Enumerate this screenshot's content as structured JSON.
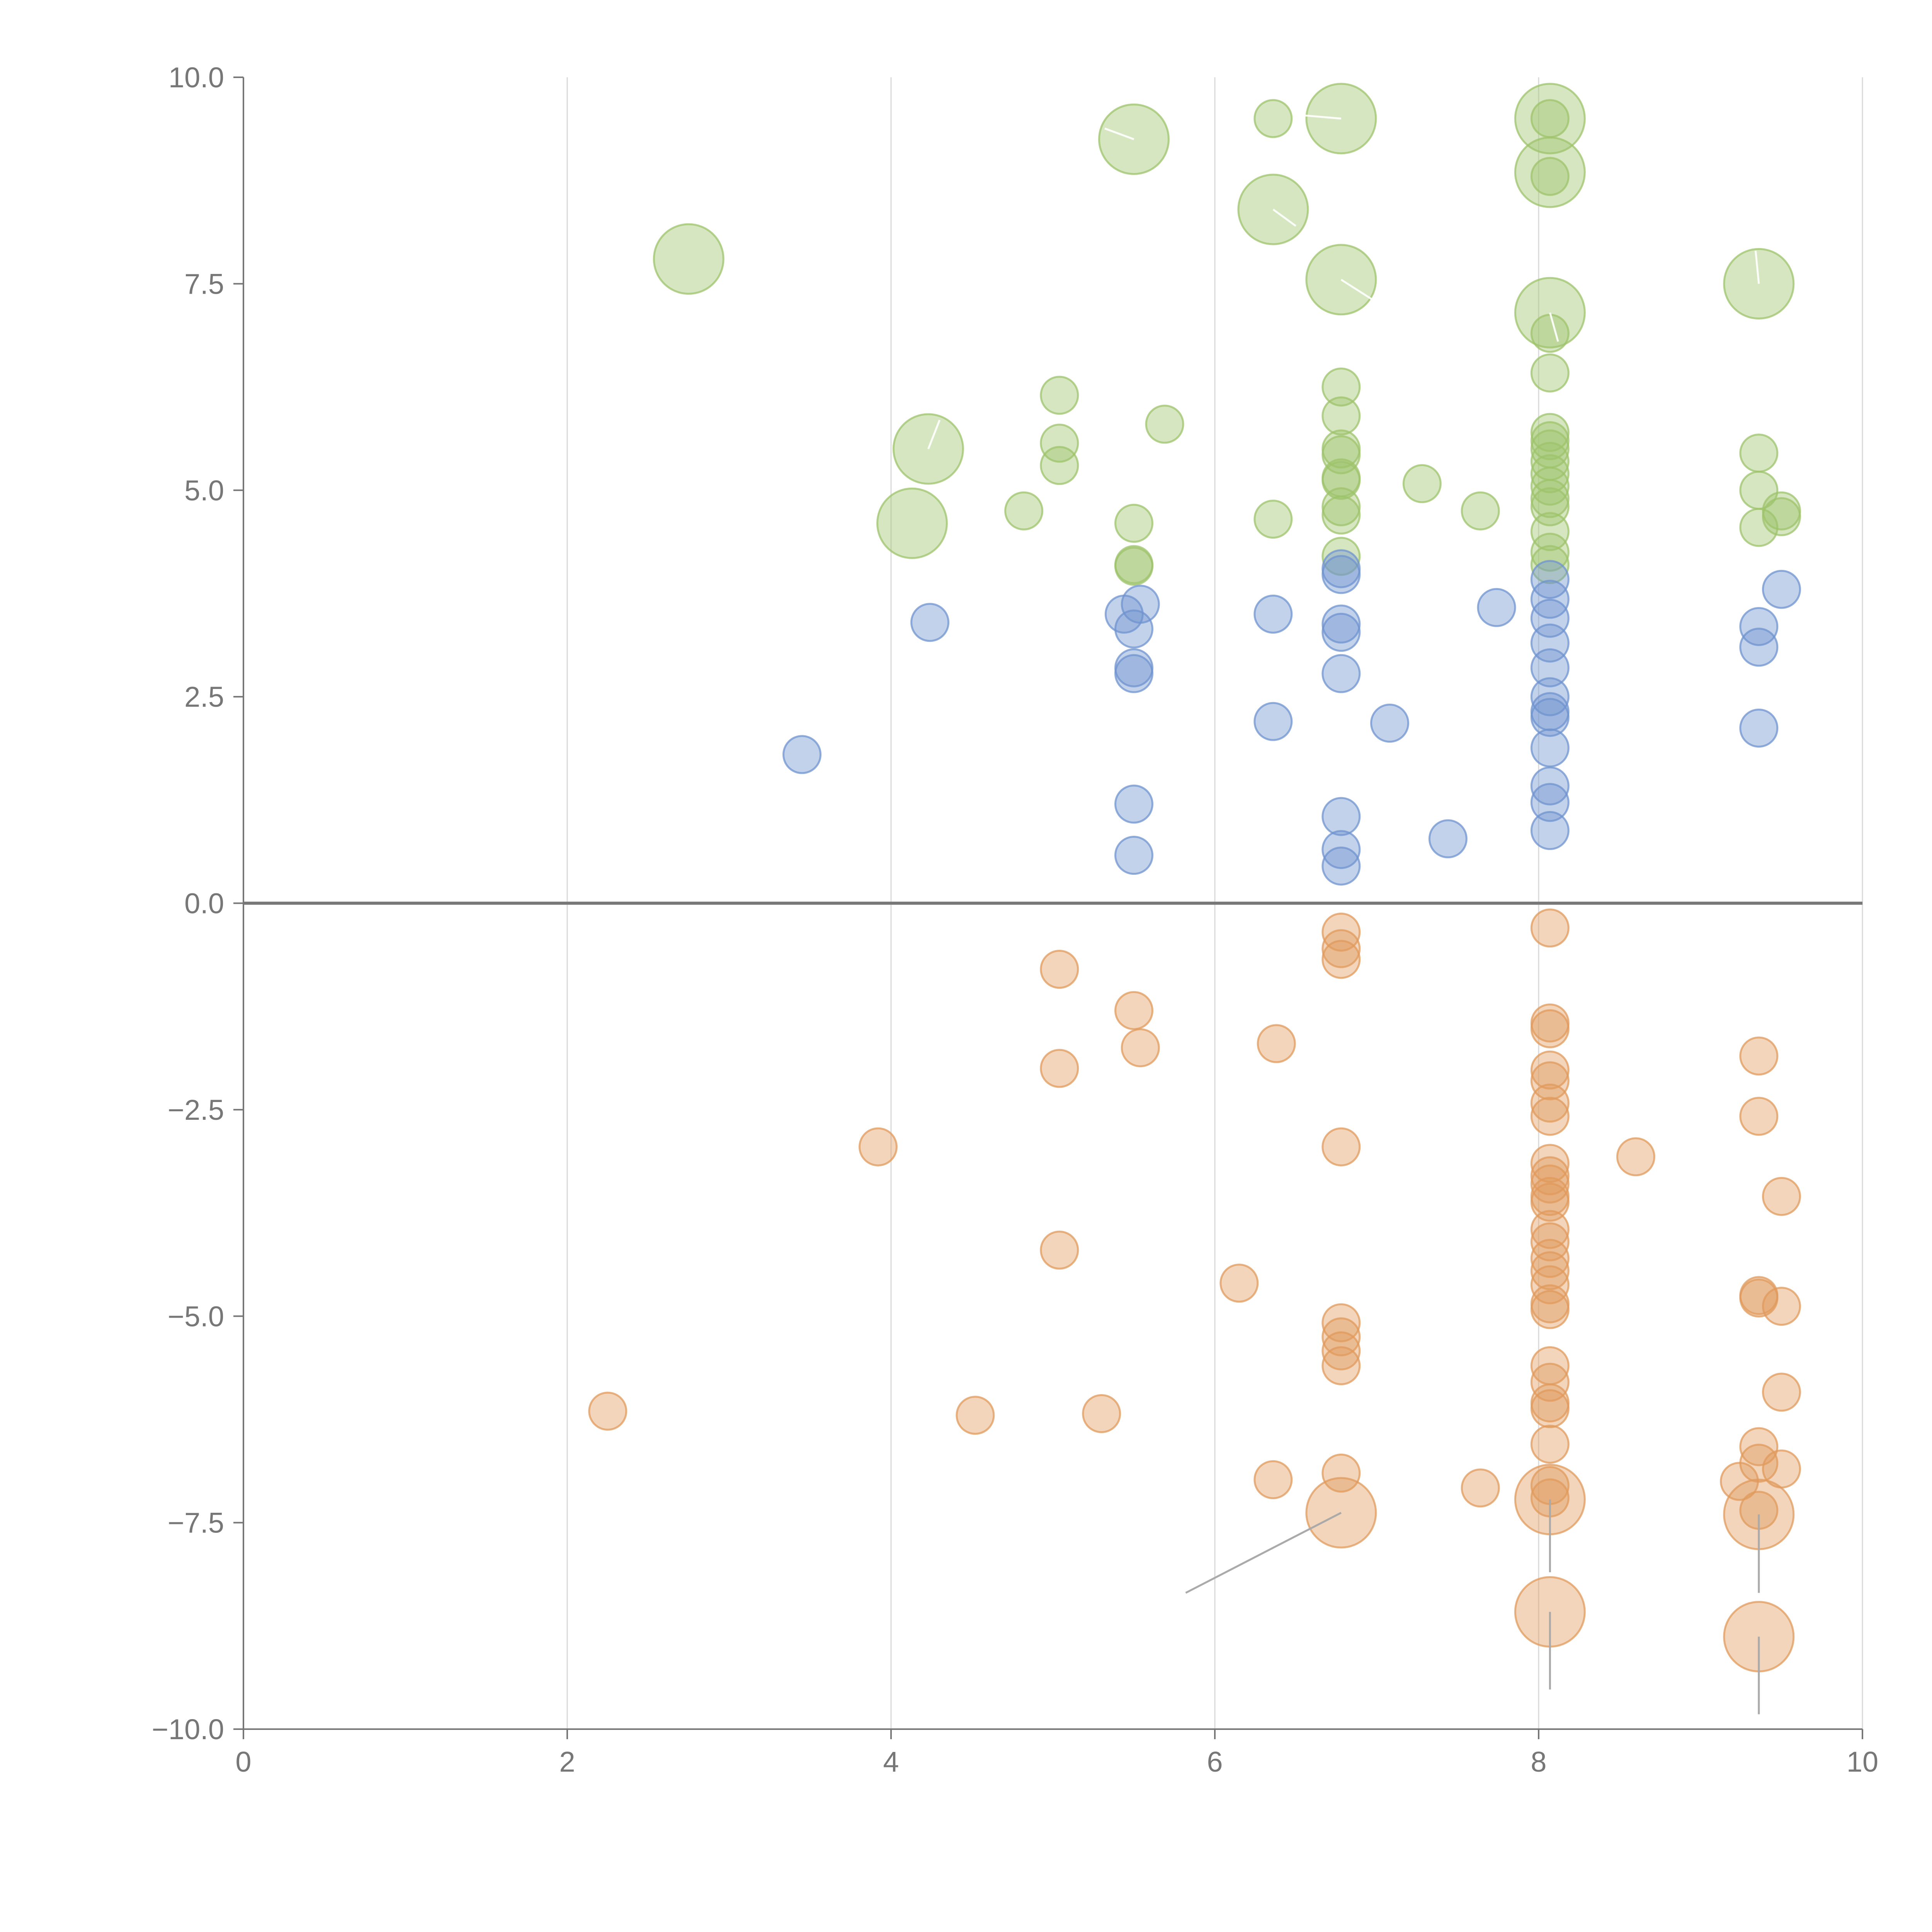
{
  "colors": {
    "background": "#ffffff",
    "axis": "#777777",
    "grid": "#d9d9d9",
    "leader_line": "#aaaaaa",
    "series_green": "#9dc36b",
    "series_blue": "#6f93cf",
    "series_orange": "#e09a5c"
  },
  "chart_data": {
    "type": "scatter",
    "title": "",
    "xlabel": "",
    "ylabel": "",
    "xlim": [
      0,
      10
    ],
    "ylim": [
      -10,
      10
    ],
    "x_ticks": [
      "0",
      "2",
      "4",
      "6",
      "8",
      "10"
    ],
    "x_tick_values": [
      0,
      2,
      4,
      6,
      8,
      10
    ],
    "y_ticks": [
      "10.0",
      "7.5",
      "5.0",
      "2.5",
      "0.0",
      "−2.5",
      "−5.0",
      "−7.5",
      "−10.0"
    ],
    "y_tick_values": [
      10,
      7.5,
      5,
      2.5,
      0,
      -2.5,
      -5,
      -7.5,
      -10
    ],
    "grid": "vertical-only",
    "zero_line": true,
    "legend": "none",
    "series": [
      {
        "name": "green",
        "color": "#9dc36b",
        "points": [
          {
            "x": 2.75,
            "y": 7.8,
            "size": 2
          },
          {
            "x": 4.13,
            "y": 4.6,
            "size": 2
          },
          {
            "x": 4.23,
            "y": 5.5,
            "size": 2
          },
          {
            "x": 4.82,
            "y": 4.75,
            "size": 1
          },
          {
            "x": 5.04,
            "y": 6.15,
            "size": 1
          },
          {
            "x": 5.04,
            "y": 5.57,
            "size": 1
          },
          {
            "x": 5.04,
            "y": 5.3,
            "size": 1
          },
          {
            "x": 5.5,
            "y": 9.25,
            "size": 2
          },
          {
            "x": 5.5,
            "y": 4.6,
            "size": 1
          },
          {
            "x": 5.5,
            "y": 4.1,
            "size": 1
          },
          {
            "x": 5.5,
            "y": 4.08,
            "size": 1
          },
          {
            "x": 5.69,
            "y": 5.8,
            "size": 1
          },
          {
            "x": 6.36,
            "y": 9.5,
            "size": 1
          },
          {
            "x": 6.36,
            "y": 8.4,
            "size": 2
          },
          {
            "x": 6.36,
            "y": 4.65,
            "size": 1
          },
          {
            "x": 6.78,
            "y": 9.5,
            "size": 2
          },
          {
            "x": 6.78,
            "y": 7.55,
            "size": 2
          },
          {
            "x": 6.78,
            "y": 6.25,
            "size": 1
          },
          {
            "x": 6.78,
            "y": 5.9,
            "size": 1
          },
          {
            "x": 6.78,
            "y": 5.5,
            "size": 1
          },
          {
            "x": 6.78,
            "y": 5.43,
            "size": 1
          },
          {
            "x": 6.78,
            "y": 5.15,
            "size": 1
          },
          {
            "x": 6.78,
            "y": 5.12,
            "size": 1
          },
          {
            "x": 6.78,
            "y": 4.8,
            "size": 1
          },
          {
            "x": 6.78,
            "y": 4.7,
            "size": 1
          },
          {
            "x": 6.78,
            "y": 4.2,
            "size": 1
          },
          {
            "x": 7.28,
            "y": 5.08,
            "size": 1
          },
          {
            "x": 7.64,
            "y": 4.75,
            "size": 1
          },
          {
            "x": 8.07,
            "y": 9.5,
            "size": 2
          },
          {
            "x": 8.07,
            "y": 9.5,
            "size": 1
          },
          {
            "x": 8.07,
            "y": 8.85,
            "size": 2
          },
          {
            "x": 8.07,
            "y": 8.8,
            "size": 1
          },
          {
            "x": 8.07,
            "y": 7.15,
            "size": 2
          },
          {
            "x": 8.07,
            "y": 6.9,
            "size": 1
          },
          {
            "x": 8.07,
            "y": 6.42,
            "size": 1
          },
          {
            "x": 8.07,
            "y": 5.7,
            "size": 1
          },
          {
            "x": 8.07,
            "y": 5.6,
            "size": 1
          },
          {
            "x": 8.07,
            "y": 5.5,
            "size": 1
          },
          {
            "x": 8.07,
            "y": 5.35,
            "size": 1
          },
          {
            "x": 8.07,
            "y": 5.2,
            "size": 1
          },
          {
            "x": 8.07,
            "y": 5.05,
            "size": 1
          },
          {
            "x": 8.07,
            "y": 4.9,
            "size": 1
          },
          {
            "x": 8.07,
            "y": 4.8,
            "size": 1
          },
          {
            "x": 8.07,
            "y": 4.5,
            "size": 1
          },
          {
            "x": 8.07,
            "y": 4.25,
            "size": 1
          },
          {
            "x": 8.07,
            "y": 4.1,
            "size": 1
          },
          {
            "x": 9.36,
            "y": 7.5,
            "size": 2
          },
          {
            "x": 9.36,
            "y": 5.45,
            "size": 1
          },
          {
            "x": 9.36,
            "y": 5.0,
            "size": 1
          },
          {
            "x": 9.36,
            "y": 4.55,
            "size": 1
          },
          {
            "x": 9.5,
            "y": 4.75,
            "size": 1
          },
          {
            "x": 9.5,
            "y": 4.68,
            "size": 1
          }
        ]
      },
      {
        "name": "blue",
        "color": "#6f93cf",
        "points": [
          {
            "x": 3.45,
            "y": 1.8,
            "size": 1
          },
          {
            "x": 4.24,
            "y": 3.4,
            "size": 1
          },
          {
            "x": 5.44,
            "y": 3.5,
            "size": 1
          },
          {
            "x": 5.54,
            "y": 3.62,
            "size": 1
          },
          {
            "x": 5.5,
            "y": 3.32,
            "size": 1
          },
          {
            "x": 5.5,
            "y": 2.85,
            "size": 1
          },
          {
            "x": 5.5,
            "y": 2.78,
            "size": 1
          },
          {
            "x": 5.5,
            "y": 1.2,
            "size": 1
          },
          {
            "x": 5.5,
            "y": 0.58,
            "size": 1
          },
          {
            "x": 6.36,
            "y": 3.5,
            "size": 1
          },
          {
            "x": 6.36,
            "y": 2.2,
            "size": 1
          },
          {
            "x": 6.78,
            "y": 4.05,
            "size": 1
          },
          {
            "x": 6.78,
            "y": 3.98,
            "size": 1
          },
          {
            "x": 6.78,
            "y": 3.38,
            "size": 1
          },
          {
            "x": 6.78,
            "y": 3.28,
            "size": 1
          },
          {
            "x": 6.78,
            "y": 2.78,
            "size": 1
          },
          {
            "x": 6.78,
            "y": 1.05,
            "size": 1
          },
          {
            "x": 6.78,
            "y": 0.65,
            "size": 1
          },
          {
            "x": 6.78,
            "y": 0.45,
            "size": 1
          },
          {
            "x": 7.08,
            "y": 2.18,
            "size": 1
          },
          {
            "x": 7.44,
            "y": 0.78,
            "size": 1
          },
          {
            "x": 7.74,
            "y": 3.58,
            "size": 1
          },
          {
            "x": 8.07,
            "y": 3.92,
            "size": 1
          },
          {
            "x": 8.07,
            "y": 3.68,
            "size": 1
          },
          {
            "x": 8.07,
            "y": 3.45,
            "size": 1
          },
          {
            "x": 8.07,
            "y": 3.15,
            "size": 1
          },
          {
            "x": 8.07,
            "y": 2.85,
            "size": 1
          },
          {
            "x": 8.07,
            "y": 2.5,
            "size": 1
          },
          {
            "x": 8.07,
            "y": 2.32,
            "size": 1
          },
          {
            "x": 8.07,
            "y": 2.25,
            "size": 1
          },
          {
            "x": 8.07,
            "y": 1.88,
            "size": 1
          },
          {
            "x": 8.07,
            "y": 1.42,
            "size": 1
          },
          {
            "x": 8.07,
            "y": 1.22,
            "size": 1
          },
          {
            "x": 8.07,
            "y": 0.88,
            "size": 1
          },
          {
            "x": 9.36,
            "y": 3.35,
            "size": 1
          },
          {
            "x": 9.36,
            "y": 3.1,
            "size": 1
          },
          {
            "x": 9.36,
            "y": 2.12,
            "size": 1
          },
          {
            "x": 9.5,
            "y": 3.8,
            "size": 1
          }
        ]
      },
      {
        "name": "orange",
        "color": "#e09a5c",
        "points": [
          {
            "x": 2.25,
            "y": -6.15,
            "size": 1
          },
          {
            "x": 3.92,
            "y": -2.95,
            "size": 1
          },
          {
            "x": 4.52,
            "y": -6.2,
            "size": 1
          },
          {
            "x": 5.04,
            "y": -0.8,
            "size": 1
          },
          {
            "x": 5.04,
            "y": -2.0,
            "size": 1
          },
          {
            "x": 5.04,
            "y": -4.2,
            "size": 1
          },
          {
            "x": 5.3,
            "y": -6.18,
            "size": 1
          },
          {
            "x": 5.5,
            "y": -1.3,
            "size": 1
          },
          {
            "x": 5.54,
            "y": -1.75,
            "size": 1
          },
          {
            "x": 6.15,
            "y": -4.6,
            "size": 1
          },
          {
            "x": 6.38,
            "y": -1.7,
            "size": 1
          },
          {
            "x": 6.36,
            "y": -6.98,
            "size": 1
          },
          {
            "x": 6.78,
            "y": -0.35,
            "size": 1
          },
          {
            "x": 6.78,
            "y": -0.55,
            "size": 1
          },
          {
            "x": 6.78,
            "y": -0.68,
            "size": 1
          },
          {
            "x": 6.78,
            "y": -2.95,
            "size": 1
          },
          {
            "x": 6.78,
            "y": -5.08,
            "size": 1
          },
          {
            "x": 6.78,
            "y": -5.25,
            "size": 1
          },
          {
            "x": 6.78,
            "y": -5.42,
            "size": 1
          },
          {
            "x": 6.78,
            "y": -5.6,
            "size": 1
          },
          {
            "x": 6.78,
            "y": -6.9,
            "size": 1
          },
          {
            "x": 6.78,
            "y": -7.38,
            "size": 2
          },
          {
            "x": 7.64,
            "y": -7.08,
            "size": 1
          },
          {
            "x": 8.07,
            "y": -0.3,
            "size": 1
          },
          {
            "x": 8.07,
            "y": -1.45,
            "size": 1
          },
          {
            "x": 8.07,
            "y": -1.52,
            "size": 1
          },
          {
            "x": 8.07,
            "y": -2.02,
            "size": 1
          },
          {
            "x": 8.07,
            "y": -2.15,
            "size": 1
          },
          {
            "x": 8.07,
            "y": -2.42,
            "size": 1
          },
          {
            "x": 8.07,
            "y": -2.58,
            "size": 1
          },
          {
            "x": 8.07,
            "y": -3.15,
            "size": 1
          },
          {
            "x": 8.07,
            "y": -3.3,
            "size": 1
          },
          {
            "x": 8.07,
            "y": -3.4,
            "size": 1
          },
          {
            "x": 8.07,
            "y": -3.55,
            "size": 1
          },
          {
            "x": 8.07,
            "y": -3.62,
            "size": 1
          },
          {
            "x": 8.07,
            "y": -3.95,
            "size": 1
          },
          {
            "x": 8.07,
            "y": -4.1,
            "size": 1
          },
          {
            "x": 8.07,
            "y": -4.3,
            "size": 1
          },
          {
            "x": 8.07,
            "y": -4.45,
            "size": 1
          },
          {
            "x": 8.07,
            "y": -4.62,
            "size": 1
          },
          {
            "x": 8.07,
            "y": -4.85,
            "size": 1
          },
          {
            "x": 8.07,
            "y": -4.92,
            "size": 1
          },
          {
            "x": 8.07,
            "y": -5.6,
            "size": 1
          },
          {
            "x": 8.07,
            "y": -5.8,
            "size": 1
          },
          {
            "x": 8.07,
            "y": -6.05,
            "size": 1
          },
          {
            "x": 8.07,
            "y": -6.12,
            "size": 1
          },
          {
            "x": 8.07,
            "y": -6.55,
            "size": 1
          },
          {
            "x": 8.07,
            "y": -7.05,
            "size": 1
          },
          {
            "x": 8.07,
            "y": -7.2,
            "size": 1
          },
          {
            "x": 8.07,
            "y": -7.22,
            "size": 2
          },
          {
            "x": 8.07,
            "y": -8.58,
            "size": 2
          },
          {
            "x": 8.6,
            "y": -3.07,
            "size": 1
          },
          {
            "x": 9.24,
            "y": -7.0,
            "size": 1
          },
          {
            "x": 9.36,
            "y": -1.85,
            "size": 1
          },
          {
            "x": 9.36,
            "y": -2.58,
            "size": 1
          },
          {
            "x": 9.36,
            "y": -4.75,
            "size": 1
          },
          {
            "x": 9.36,
            "y": -4.78,
            "size": 1
          },
          {
            "x": 9.36,
            "y": -6.58,
            "size": 1
          },
          {
            "x": 9.36,
            "y": -6.78,
            "size": 1
          },
          {
            "x": 9.36,
            "y": -7.35,
            "size": 1
          },
          {
            "x": 9.36,
            "y": -7.4,
            "size": 2
          },
          {
            "x": 9.36,
            "y": -8.88,
            "size": 2
          },
          {
            "x": 9.5,
            "y": -3.55,
            "size": 1
          },
          {
            "x": 9.5,
            "y": -4.88,
            "size": 1
          },
          {
            "x": 9.5,
            "y": -5.92,
            "size": 1
          },
          {
            "x": 9.5,
            "y": -6.85,
            "size": 1
          }
        ]
      }
    ],
    "leader_lines": [
      {
        "from": [
          6.78,
          -7.38
        ],
        "to": [
          5.82,
          -8.35
        ],
        "style": "gray"
      },
      {
        "from": [
          8.07,
          -8.58
        ],
        "to": [
          8.07,
          -9.52
        ],
        "style": "gray"
      },
      {
        "from": [
          9.36,
          -8.88
        ],
        "to": [
          9.36,
          -9.82
        ],
        "style": "gray"
      },
      {
        "from": [
          9.36,
          -7.4
        ],
        "to": [
          9.36,
          -8.35
        ],
        "style": "gray"
      },
      {
        "from": [
          8.07,
          -7.22
        ],
        "to": [
          8.07,
          -8.1
        ],
        "style": "gray"
      },
      {
        "from": [
          5.5,
          9.25
        ],
        "to": [
          5.32,
          9.38
        ],
        "style": "white"
      },
      {
        "from": [
          6.78,
          9.5
        ],
        "to": [
          6.48,
          9.55
        ],
        "style": "white"
      },
      {
        "from": [
          6.78,
          7.55
        ],
        "to": [
          6.98,
          7.3
        ],
        "style": "white"
      },
      {
        "from": [
          6.36,
          8.4
        ],
        "to": [
          6.5,
          8.2
        ],
        "style": "white"
      },
      {
        "from": [
          4.23,
          5.5
        ],
        "to": [
          4.3,
          5.85
        ],
        "style": "white"
      },
      {
        "from": [
          9.36,
          7.5
        ],
        "to": [
          9.34,
          7.9
        ],
        "style": "white"
      },
      {
        "from": [
          8.07,
          7.15
        ],
        "to": [
          8.12,
          6.8
        ],
        "style": "white"
      }
    ]
  }
}
